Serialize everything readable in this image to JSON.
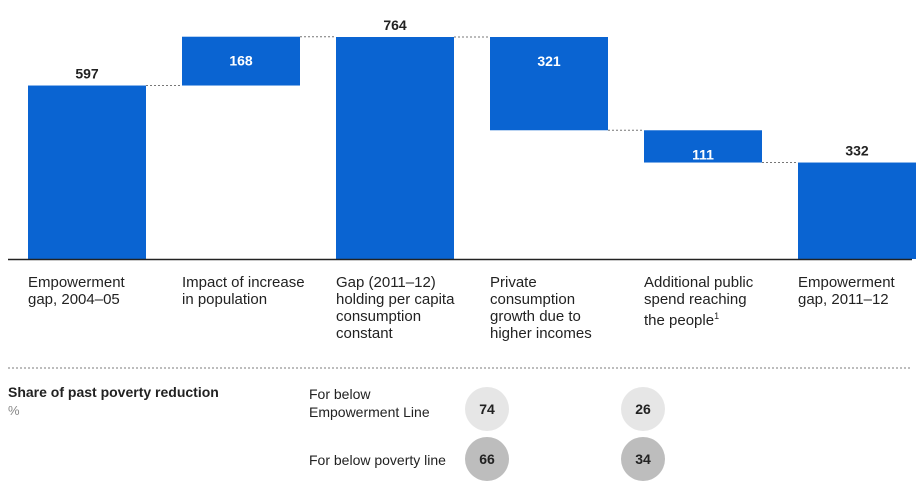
{
  "chart_data": {
    "type": "bar",
    "subtype": "waterfall",
    "categories": [
      "Empowerment gap, 2004–05",
      "Impact of increase in population",
      "Gap (2011–12) holding per capita consumption constant",
      "Private consumption growth due to higher incomes",
      "Additional public spend reaching the people",
      "Empowerment gap, 2011–12"
    ],
    "category_lines": [
      [
        "Empowerment",
        "gap, 2004–05"
      ],
      [
        "Impact of increase",
        "in population"
      ],
      [
        "Gap (2011–12)",
        "holding per capita",
        "consumption",
        "constant"
      ],
      [
        "Private",
        "consumption",
        "growth due to",
        "higher incomes"
      ],
      [
        "Additional public",
        "spend reaching",
        "the people"
      ],
      [
        "Empowerment",
        "gap, 2011–12"
      ]
    ],
    "footnote_marker": "1",
    "bars": [
      {
        "kind": "total",
        "start": 0,
        "end": 597,
        "label": "597"
      },
      {
        "kind": "increase",
        "start": 597,
        "end": 765,
        "label": "168"
      },
      {
        "kind": "total",
        "start": 0,
        "end": 764,
        "label": "764"
      },
      {
        "kind": "decrease",
        "start": 764,
        "end": 443,
        "label": "321"
      },
      {
        "kind": "decrease",
        "start": 443,
        "end": 332,
        "label": "111"
      },
      {
        "kind": "total",
        "start": 0,
        "end": 332,
        "label": "332"
      }
    ],
    "ylim": [
      0,
      764
    ],
    "color": "#0a64d2",
    "grid": false
  },
  "share": {
    "title": "Share of past poverty reduction",
    "unit": "%",
    "rows": [
      {
        "label_lines": [
          "For below",
          "Empowerment Line"
        ],
        "values": [
          "74",
          "26"
        ],
        "shade": "light"
      },
      {
        "label_lines": [
          "For below poverty line"
        ],
        "values": [
          "66",
          "34"
        ],
        "shade": "dark"
      }
    ]
  }
}
